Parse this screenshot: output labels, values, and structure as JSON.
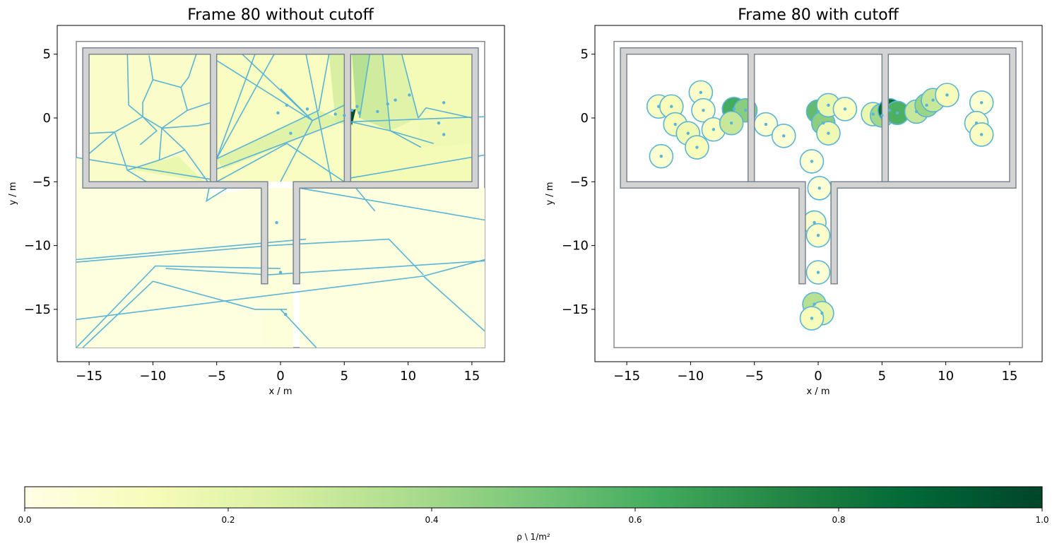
{
  "chart_data": [
    {
      "type": "voronoi-density-map",
      "title": "Frame 80 without cutoff",
      "xlabel": "x / m",
      "ylabel": "y / m",
      "xlim": [
        -17.5,
        17.5
      ],
      "ylim": [
        -19,
        7
      ],
      "xticks": [
        -15,
        -10,
        -5,
        0,
        5,
        10,
        15
      ],
      "yticks": [
        5,
        0,
        -5,
        -10,
        -15
      ],
      "xtick_labels": [
        "−15",
        "−10",
        "−5",
        "0",
        "5",
        "10",
        "15"
      ],
      "ytick_labels": [
        "5",
        "0",
        "−5",
        "−10",
        "−15"
      ],
      "pedestrians": [
        [
          0.5,
          1.0
        ],
        [
          -0.2,
          0.4
        ],
        [
          0.8,
          -1.2
        ],
        [
          2.1,
          0.7
        ],
        [
          4.3,
          0.3
        ],
        [
          5.0,
          0.2
        ],
        [
          5.6,
          0.6
        ],
        [
          6.0,
          0.9
        ],
        [
          6.2,
          0.4
        ],
        [
          7.6,
          0.5
        ],
        [
          8.4,
          1.1
        ],
        [
          9.0,
          1.4
        ],
        [
          10.1,
          1.8
        ],
        [
          12.8,
          1.2
        ],
        [
          12.4,
          -0.4
        ],
        [
          12.8,
          -1.3
        ],
        [
          -0.3,
          -8.2
        ],
        [
          0,
          -12.1
        ],
        [
          0.4,
          -15.4
        ]
      ],
      "max_density_cell_value": 1.0
    },
    {
      "type": "voronoi-density-map",
      "title": "Frame 80 with cutoff",
      "xlabel": "x / m",
      "ylabel": "y / m",
      "xlim": [
        -17.5,
        17.5
      ],
      "ylim": [
        -19,
        7
      ],
      "xticks": [
        -15,
        -10,
        -5,
        0,
        5,
        10,
        15
      ],
      "yticks": [
        5,
        0,
        -5,
        -10,
        -15
      ],
      "xtick_labels": [
        "−15",
        "−10",
        "−5",
        "0",
        "5",
        "10",
        "15"
      ],
      "ytick_labels": [
        "5",
        "0",
        "−5",
        "−10",
        "−15"
      ],
      "pedestrians": [
        [
          -12.5,
          0.9
        ],
        [
          -11.5,
          0.9
        ],
        [
          -9.2,
          2.0
        ],
        [
          -9.0,
          0.6
        ],
        [
          -11.2,
          -0.5
        ],
        [
          -10.2,
          -1.2
        ],
        [
          -9.5,
          -2.3
        ],
        [
          -8.2,
          -0.9
        ],
        [
          -12.3,
          -3.0
        ],
        [
          -6.6,
          0.7
        ],
        [
          -5.7,
          0.6
        ],
        [
          -6.8,
          -0.4
        ],
        [
          -4.1,
          -0.5
        ],
        [
          -2.7,
          -1.4
        ],
        [
          0.0,
          0.5
        ],
        [
          0.4,
          -0.4
        ],
        [
          0.8,
          1.0
        ],
        [
          2.1,
          0.7
        ],
        [
          0.8,
          -1.2
        ],
        [
          4.3,
          0.3
        ],
        [
          5.0,
          0.2
        ],
        [
          5.6,
          0.6
        ],
        [
          6.2,
          0.4
        ],
        [
          7.7,
          0.5
        ],
        [
          8.5,
          1.0
        ],
        [
          9.0,
          1.4
        ],
        [
          10.1,
          1.8
        ],
        [
          12.8,
          1.2
        ],
        [
          12.4,
          -0.4
        ],
        [
          12.8,
          -1.3
        ],
        [
          -0.5,
          -3.4
        ],
        [
          0.1,
          -5.5
        ],
        [
          -0.3,
          -8.2
        ],
        [
          0,
          -9.2
        ],
        [
          0,
          -12.1
        ],
        [
          -0.3,
          -14.6
        ],
        [
          0.3,
          -15.3
        ],
        [
          -0.5,
          -15.7
        ]
      ],
      "cutoff_radius_m": 1.0,
      "max_density_cell_value": 1.0
    }
  ],
  "colorbar": {
    "label": "ρ \\ 1/m²",
    "ticks": [
      0.0,
      0.2,
      0.4,
      0.6,
      0.8,
      1.0
    ],
    "tick_labels": [
      "0.0",
      "0.2",
      "0.4",
      "0.6",
      "0.8",
      "1.0"
    ],
    "colormap": "YlGn",
    "stops": [
      "#ffffe5",
      "#f7fcb9",
      "#d9f0a3",
      "#addd8e",
      "#78c679",
      "#41ab5d",
      "#238443",
      "#006837",
      "#004529"
    ]
  },
  "colors": {
    "cell_edge": "#5ab4d6",
    "wall_fill": "#d3d3d3",
    "wall_edge": "#7a8590",
    "point": "#5ab4d6"
  }
}
